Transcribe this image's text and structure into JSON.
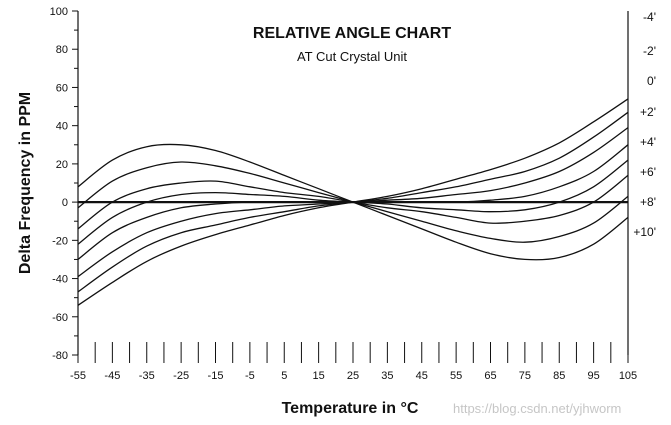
{
  "chart_data": {
    "type": "line",
    "title": "RELATIVE ANGLE CHART",
    "subtitle": "AT Cut Crystal Unit",
    "xlabel": "Temperature in °C",
    "ylabel": "Delta Frequency in PPM",
    "xlim": [
      -55,
      105
    ],
    "ylim": [
      -80,
      100
    ],
    "x_ticks": [
      "-55",
      "-45",
      "-35",
      "-25",
      "-15",
      "-5",
      "5",
      "15",
      "25",
      "35",
      "45",
      "55",
      "65",
      "75",
      "85",
      "95",
      "105"
    ],
    "y_ticks": [
      "100",
      "80",
      "60",
      "40",
      "20",
      "0",
      "-20",
      "-40",
      "-60",
      "-80"
    ],
    "grid": false,
    "legend_position": "right",
    "x": [
      -55,
      -45,
      -35,
      -25,
      -15,
      -5,
      5,
      15,
      25,
      35,
      45,
      55,
      65,
      75,
      85,
      95,
      105
    ],
    "series": [
      {
        "name": "-4'",
        "values": [
          8,
          22,
          29,
          30,
          27,
          21,
          14,
          7,
          0,
          -7,
          -14,
          -21,
          -27,
          -30,
          -29,
          -22,
          -8
        ]
      },
      {
        "name": "-2'",
        "values": [
          -3,
          11,
          18,
          21,
          19,
          15,
          10,
          5,
          0,
          -5,
          -10,
          -15,
          -19,
          -21,
          -18,
          -11,
          3
        ]
      },
      {
        "name": "0'",
        "values": [
          -14,
          0,
          7,
          10,
          11,
          8,
          5,
          3,
          0,
          -3,
          -5,
          -8,
          -11,
          -10,
          -7,
          0,
          14
        ]
      },
      {
        "name": "+2'",
        "values": [
          -22,
          -8,
          0,
          4,
          5,
          4,
          3,
          1,
          0,
          -1,
          -3,
          -4,
          -5,
          -4,
          0,
          8,
          22
        ]
      },
      {
        "name": "+4'",
        "values": [
          -30,
          -16,
          -8,
          -3,
          -1,
          0,
          0,
          0,
          0,
          0,
          0,
          0,
          1,
          3,
          8,
          16,
          30
        ]
      },
      {
        "name": "+6'",
        "values": [
          -39,
          -26,
          -16,
          -10,
          -6,
          -4,
          -2,
          -1,
          0,
          1,
          2,
          4,
          6,
          10,
          16,
          26,
          39
        ]
      },
      {
        "name": "+8'",
        "values": [
          -47,
          -34,
          -23,
          -16,
          -12,
          -8,
          -5,
          -2,
          0,
          2,
          5,
          8,
          12,
          16,
          23,
          34,
          47
        ]
      },
      {
        "name": "+10'",
        "values": [
          -54,
          -42,
          -31,
          -23,
          -17,
          -12,
          -7,
          -3,
          0,
          3,
          7,
          12,
          17,
          23,
          31,
          42,
          54
        ]
      }
    ],
    "reference_line": 0
  },
  "watermark": "https://blog.csdn.net/yjhworm",
  "colors": {
    "line": "#111111",
    "background": "#ffffff"
  }
}
